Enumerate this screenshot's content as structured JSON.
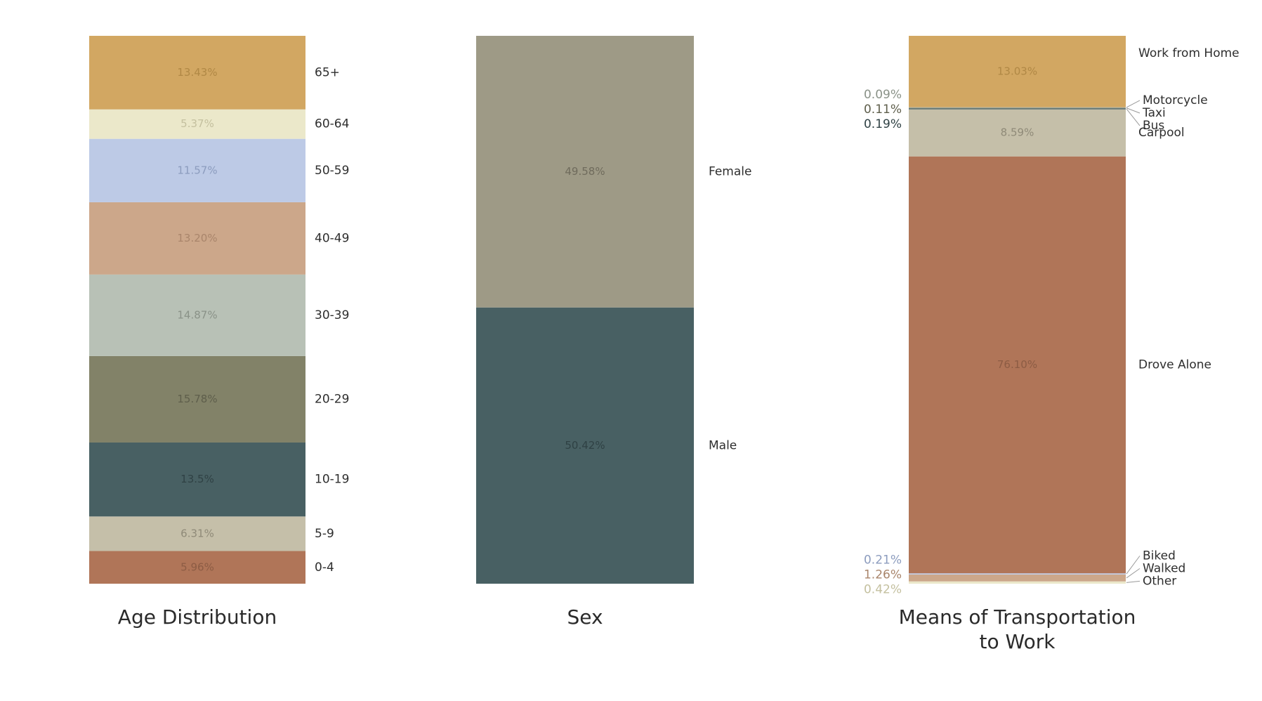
{
  "chart_data": [
    {
      "type": "bar",
      "stacked": true,
      "title": "Age Distribution",
      "unit": "%",
      "segments": [
        {
          "label": "0-4",
          "value": 5.96,
          "value_label": "5.96%",
          "color": "#b07558",
          "text_color": "#8c5c44"
        },
        {
          "label": "5-9",
          "value": 6.31,
          "value_label": "6.31%",
          "color": "#c5bfa9",
          "text_color": "#8f8a78"
        },
        {
          "label": "10-19",
          "value": 13.5,
          "value_label": "13.5%",
          "color": "#486063",
          "text_color": "#2f4144"
        },
        {
          "label": "20-29",
          "value": 15.78,
          "value_label": "15.78%",
          "color": "#828268",
          "text_color": "#5e5e4b"
        },
        {
          "label": "30-39",
          "value": 14.87,
          "value_label": "14.87%",
          "color": "#b8c1b6",
          "text_color": "#8a9288"
        },
        {
          "label": "40-49",
          "value": 13.2,
          "value_label": "13.20%",
          "color": "#cca78a",
          "text_color": "#a9856b"
        },
        {
          "label": "50-59",
          "value": 11.57,
          "value_label": "11.57%",
          "color": "#bdcae6",
          "text_color": "#8c9cbe"
        },
        {
          "label": "60-64",
          "value": 5.37,
          "value_label": "5.37%",
          "color": "#ebe8ca",
          "text_color": "#c4c09f"
        },
        {
          "label": "65+",
          "value": 13.43,
          "value_label": "13.43%",
          "color": "#d2a762",
          "text_color": "#b08845"
        }
      ]
    },
    {
      "type": "bar",
      "stacked": true,
      "title": "Sex",
      "unit": "%",
      "segments": [
        {
          "label": "Male",
          "value": 50.42,
          "value_label": "50.42%",
          "color": "#486063",
          "text_color": "#2f4144"
        },
        {
          "label": "Female",
          "value": 49.58,
          "value_label": "49.58%",
          "color": "#9e9a86",
          "text_color": "#6f6b5c"
        }
      ]
    },
    {
      "type": "bar",
      "stacked": true,
      "title": "Means of Transportation to Work",
      "title_lines": [
        "Means of Transportation",
        "to Work"
      ],
      "unit": "%",
      "segments": [
        {
          "label": "Other",
          "value": 0.42,
          "value_label": "0.42%",
          "color": "#ebe8ca",
          "text_color": "#c4c09f",
          "outside": true
        },
        {
          "label": "Walked",
          "value": 1.26,
          "value_label": "1.26%",
          "color": "#cca78a",
          "text_color": "#a9856b",
          "outside": true
        },
        {
          "label": "Biked",
          "value": 0.21,
          "value_label": "0.21%",
          "color": "#bdcae6",
          "text_color": "#8c9cbe",
          "outside": true
        },
        {
          "label": "Drove Alone",
          "value": 76.1,
          "value_label": "76.10%",
          "color": "#b07558",
          "text_color": "#8c5c44"
        },
        {
          "label": "Carpool",
          "value": 8.59,
          "value_label": "8.59%",
          "color": "#c5bfa9",
          "text_color": "#8f8a78"
        },
        {
          "label": "Bus",
          "value": 0.19,
          "value_label": "0.19%",
          "color": "#486063",
          "text_color": "#2f4144",
          "outside": true
        },
        {
          "label": "Taxi",
          "value": 0.11,
          "value_label": "0.11%",
          "color": "#828268",
          "text_color": "#5e5e4b",
          "outside": true
        },
        {
          "label": "Motorcycle",
          "value": 0.09,
          "value_label": "0.09%",
          "color": "#b8c1b6",
          "text_color": "#8a9288",
          "outside": true
        },
        {
          "label": "Work from Home",
          "value": 13.03,
          "value_label": "13.03%",
          "color": "#d2a762",
          "text_color": "#b08845"
        }
      ]
    }
  ]
}
